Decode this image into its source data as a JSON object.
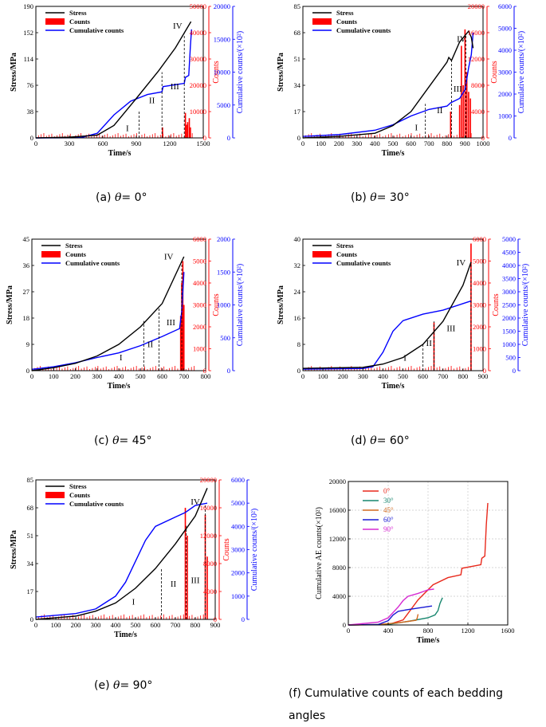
{
  "colors": {
    "stress": "#000000",
    "counts": "#ff0000",
    "cum": "#0000ff",
    "deg0": "#e8291c",
    "deg30": "#17866e",
    "deg45": "#d2691e",
    "deg60": "#1a1ad4",
    "deg90": "#d62ad2",
    "grid": "#c8c8c8"
  },
  "captions": {
    "a": {
      "prefix": "(a)",
      "theta": "θ",
      "suffix": "= 0°"
    },
    "b": {
      "prefix": "(b)",
      "theta": "θ",
      "suffix": "= 30°"
    },
    "c": {
      "prefix": "(c)",
      "theta": "θ",
      "suffix": "= 45°"
    },
    "d": {
      "prefix": "(d)",
      "theta": "θ",
      "suffix": "= 60°"
    },
    "e": {
      "prefix": "(e)",
      "theta": "θ",
      "suffix": "= 90°"
    },
    "f_line1": "(f) Cumulative counts of each bedding",
    "f_line2": "angles"
  },
  "chart_data": [
    {
      "id": "a",
      "type": "line",
      "xlabel": "Time/s",
      "ylabel": "Stress/MPa",
      "y2label": "Counts",
      "y3label": "Cumulative counts/(×10²)",
      "xlim": [
        0,
        1500
      ],
      "xticks": [
        "0",
        "300",
        "600",
        "900",
        "1200",
        "1500"
      ],
      "ylim": [
        0,
        190
      ],
      "yticks": [
        "0",
        "38",
        "76",
        "114",
        "152",
        "190"
      ],
      "y2lim": [
        0,
        50000
      ],
      "y2ticks": [
        "0",
        "10000",
        "20000",
        "30000",
        "40000",
        "50000"
      ],
      "y3lim": [
        0,
        20000
      ],
      "y3ticks": [
        "0",
        "5000",
        "10000",
        "15000",
        "20000"
      ],
      "legend": [
        "Stress",
        "Counts",
        "Cumulative counts"
      ],
      "stress": [
        [
          0,
          0
        ],
        [
          300,
          1
        ],
        [
          550,
          4
        ],
        [
          700,
          18
        ],
        [
          900,
          57
        ],
        [
          1100,
          97
        ],
        [
          1250,
          130
        ],
        [
          1390,
          168
        ]
      ],
      "cum": [
        [
          0,
          0
        ],
        [
          400,
          30
        ],
        [
          550,
          700
        ],
        [
          700,
          3500
        ],
        [
          850,
          5600
        ],
        [
          1000,
          6600
        ],
        [
          1130,
          7000
        ],
        [
          1140,
          7800
        ],
        [
          1330,
          8300
        ],
        [
          1340,
          9200
        ],
        [
          1370,
          9500
        ],
        [
          1385,
          14000
        ],
        [
          1395,
          16500
        ]
      ],
      "counts": [
        [
          1135,
          4000
        ],
        [
          1340,
          9500
        ],
        [
          1350,
          5000
        ],
        [
          1360,
          6000
        ],
        [
          1375,
          7500
        ],
        [
          1385,
          4000
        ]
      ],
      "dashes": [
        [
          925,
          38
        ],
        [
          1130,
          95
        ],
        [
          1330,
          150
        ]
      ],
      "stages": [
        {
          "label": "I",
          "x": 820,
          "y": 10
        },
        {
          "label": "II",
          "x": 1040,
          "y": 50
        },
        {
          "label": "III",
          "x": 1245,
          "y": 70
        },
        {
          "label": "IV",
          "x": 1270,
          "y": 158
        }
      ]
    },
    {
      "id": "b",
      "type": "line",
      "xlabel": "Time/s",
      "ylabel": "Stress/MPa",
      "y2label": "Counts",
      "y3label": "Cumulative counts/(×10²)",
      "xlim": [
        0,
        1000
      ],
      "xticks": [
        "0",
        "100",
        "200",
        "300",
        "400",
        "500",
        "600",
        "700",
        "800",
        "900",
        "1000"
      ],
      "ylim": [
        0,
        85
      ],
      "yticks": [
        "0",
        "17",
        "34",
        "51",
        "68",
        "85"
      ],
      "y2lim": [
        0,
        20000
      ],
      "y2ticks": [
        "0",
        "4000",
        "8000",
        "12000",
        "16000",
        "20000"
      ],
      "y3lim": [
        0,
        6000
      ],
      "y3ticks": [
        "0",
        "1000",
        "2000",
        "3000",
        "4000",
        "5000",
        "6000"
      ],
      "legend": [
        "Stress",
        "Counts",
        "Cumulative counts"
      ],
      "stress": [
        [
          0,
          0
        ],
        [
          200,
          1
        ],
        [
          400,
          3
        ],
        [
          500,
          8
        ],
        [
          600,
          17
        ],
        [
          700,
          33
        ],
        [
          800,
          49
        ],
        [
          810,
          52
        ],
        [
          825,
          50
        ],
        [
          870,
          62
        ],
        [
          920,
          69
        ],
        [
          935,
          65
        ],
        [
          945,
          58
        ]
      ],
      "cum": [
        [
          0,
          70
        ],
        [
          200,
          150
        ],
        [
          400,
          350
        ],
        [
          500,
          600
        ],
        [
          600,
          1000
        ],
        [
          700,
          1300
        ],
        [
          800,
          1450
        ],
        [
          820,
          1600
        ],
        [
          870,
          1800
        ],
        [
          900,
          2200
        ],
        [
          920,
          3200
        ],
        [
          935,
          3800
        ],
        [
          945,
          4800
        ]
      ],
      "counts": [
        [
          820,
          4000
        ],
        [
          870,
          5000
        ],
        [
          880,
          14000
        ],
        [
          890,
          8000
        ],
        [
          900,
          16500
        ],
        [
          910,
          10000
        ],
        [
          920,
          7000
        ],
        [
          930,
          6000
        ]
      ],
      "dashes": [
        [
          680,
          22
        ],
        [
          825,
          50
        ],
        [
          905,
          66
        ]
      ],
      "stages": [
        {
          "label": "I",
          "x": 630,
          "y": 5
        },
        {
          "label": "II",
          "x": 760,
          "y": 16
        },
        {
          "label": "III",
          "x": 860,
          "y": 30
        },
        {
          "label": "IV",
          "x": 880,
          "y": 62
        }
      ]
    },
    {
      "id": "c",
      "type": "line",
      "xlabel": "Time/s",
      "ylabel": "Stress/MPa",
      "y2label": "Counts",
      "y3label": "Cumulative counts/(×10²)",
      "xlim": [
        0,
        800
      ],
      "xticks": [
        "0",
        "100",
        "200",
        "300",
        "400",
        "500",
        "600",
        "700",
        "800"
      ],
      "ylim": [
        0,
        45
      ],
      "yticks": [
        "0",
        "9",
        "18",
        "27",
        "36",
        "45"
      ],
      "y2lim": [
        0,
        6000
      ],
      "y2ticks": [
        "0",
        "1000",
        "2000",
        "3000",
        "4000",
        "5000",
        "6000"
      ],
      "y3lim": [
        0,
        2000
      ],
      "y3ticks": [
        "0",
        "500",
        "1000",
        "1500",
        "2000"
      ],
      "legend": [
        "Stress",
        "Counts",
        "Cumulative counts"
      ],
      "stress": [
        [
          0,
          0
        ],
        [
          100,
          1
        ],
        [
          200,
          2.5
        ],
        [
          300,
          5
        ],
        [
          400,
          9
        ],
        [
          500,
          15
        ],
        [
          600,
          23
        ],
        [
          700,
          39
        ]
      ],
      "cum": [
        [
          0,
          20
        ],
        [
          100,
          60
        ],
        [
          200,
          120
        ],
        [
          300,
          200
        ],
        [
          400,
          270
        ],
        [
          500,
          380
        ],
        [
          600,
          520
        ],
        [
          680,
          640
        ],
        [
          690,
          900
        ],
        [
          700,
          1500
        ]
      ],
      "counts": [
        [
          685,
          2500
        ],
        [
          690,
          4000
        ],
        [
          695,
          5000
        ],
        [
          700,
          3000
        ]
      ],
      "dashes": [
        [
          515,
          17
        ],
        [
          585,
          22
        ],
        [
          690,
          37
        ]
      ],
      "stages": [
        {
          "label": "I",
          "x": 410,
          "y": 3.5
        },
        {
          "label": "II",
          "x": 545,
          "y": 8
        },
        {
          "label": "III",
          "x": 640,
          "y": 15.5
        },
        {
          "label": "IV",
          "x": 630,
          "y": 38
        }
      ]
    },
    {
      "id": "d",
      "type": "line",
      "xlabel": "Time/s",
      "ylabel": "Stress/MPa",
      "y2label": "Counts",
      "y3label": "Cumulative counts/(×10²)",
      "xlim": [
        0,
        900
      ],
      "xticks": [
        "0",
        "100",
        "200",
        "300",
        "400",
        "500",
        "600",
        "700",
        "800",
        "900"
      ],
      "ylim": [
        0,
        40
      ],
      "yticks": [
        "0",
        "8",
        "16",
        "24",
        "32",
        "40"
      ],
      "y2lim": [
        0,
        6000
      ],
      "y2ticks": [
        "0",
        "1000",
        "2000",
        "3000",
        "4000",
        "5000",
        "6000"
      ],
      "y3lim": [
        0,
        5000
      ],
      "y3ticks": [
        "0",
        "500",
        "1000",
        "1500",
        "2000",
        "2500",
        "3000",
        "3500",
        "4000",
        "4500",
        "5000"
      ],
      "legend": [
        "Stress",
        "Counts",
        "Cumulative counts"
      ],
      "stress": [
        [
          0,
          0.7
        ],
        [
          300,
          1
        ],
        [
          400,
          2
        ],
        [
          500,
          4
        ],
        [
          600,
          8
        ],
        [
          700,
          15
        ],
        [
          800,
          26
        ],
        [
          840,
          33
        ]
      ],
      "cum": [
        [
          0,
          60
        ],
        [
          300,
          80
        ],
        [
          350,
          150
        ],
        [
          400,
          700
        ],
        [
          450,
          1500
        ],
        [
          500,
          1900
        ],
        [
          600,
          2150
        ],
        [
          700,
          2300
        ],
        [
          800,
          2550
        ],
        [
          840,
          2650
        ]
      ],
      "counts": [
        [
          655,
          2200
        ],
        [
          840,
          5800
        ]
      ],
      "dashes": [
        [
          600,
          8
        ],
        [
          655,
          15
        ],
        [
          840,
          33
        ]
      ],
      "stages": [
        {
          "label": "I",
          "x": 510,
          "y": 3
        },
        {
          "label": "II",
          "x": 630,
          "y": 7.5
        },
        {
          "label": "III",
          "x": 740,
          "y": 12
        },
        {
          "label": "IV",
          "x": 790,
          "y": 32
        }
      ]
    },
    {
      "id": "e",
      "type": "line",
      "xlabel": "Time/s",
      "ylabel": "Stress/MPa",
      "y2label": "Counts",
      "y3label": "Cumulative counts/(×10²)",
      "xlim": [
        0,
        900
      ],
      "xticks": [
        "0",
        "100",
        "200",
        "300",
        "400",
        "500",
        "600",
        "700",
        "800",
        "900"
      ],
      "ylim": [
        0,
        85
      ],
      "yticks": [
        "0",
        "17",
        "34",
        "51",
        "68",
        "85"
      ],
      "y2lim": [
        0,
        20000
      ],
      "y2ticks": [
        "0",
        "4000",
        "8000",
        "12000",
        "16000",
        "20000"
      ],
      "y3lim": [
        0,
        6000
      ],
      "y3ticks": [
        "0",
        "1000",
        "2000",
        "3000",
        "4000",
        "5000",
        "6000"
      ],
      "legend": [
        "Stress",
        "Counts",
        "Cumulative counts"
      ],
      "stress": [
        [
          0,
          0
        ],
        [
          100,
          1
        ],
        [
          200,
          2
        ],
        [
          300,
          5
        ],
        [
          400,
          10
        ],
        [
          500,
          19
        ],
        [
          600,
          31
        ],
        [
          700,
          46
        ],
        [
          800,
          63
        ],
        [
          860,
          80
        ]
      ],
      "cum": [
        [
          0,
          100
        ],
        [
          200,
          250
        ],
        [
          300,
          450
        ],
        [
          400,
          1000
        ],
        [
          450,
          1600
        ],
        [
          500,
          2500
        ],
        [
          550,
          3400
        ],
        [
          600,
          4000
        ],
        [
          700,
          4400
        ],
        [
          750,
          4600
        ],
        [
          800,
          4900
        ],
        [
          860,
          5000
        ]
      ],
      "counts": [
        [
          750,
          16000
        ],
        [
          760,
          12000
        ],
        [
          850,
          15000
        ],
        [
          860,
          9000
        ]
      ],
      "dashes": [
        [
          630,
          31
        ],
        [
          755,
          57
        ],
        [
          850,
          70
        ]
      ],
      "stages": [
        {
          "label": "I",
          "x": 490,
          "y": 9
        },
        {
          "label": "II",
          "x": 690,
          "y": 20
        },
        {
          "label": "III",
          "x": 800,
          "y": 22
        },
        {
          "label": "IV",
          "x": 800,
          "y": 70
        }
      ]
    },
    {
      "id": "f",
      "type": "line",
      "xlabel": "Time/s",
      "ylabel": "Cumulative AE counts(×10²)",
      "xlim": [
        0,
        1600
      ],
      "xticks": [
        "0",
        "400",
        "800",
        "1200",
        "1600"
      ],
      "ylim": [
        0,
        20000
      ],
      "yticks": [
        "0",
        "4000",
        "8000",
        "12000",
        "16000",
        "20000"
      ],
      "series": [
        {
          "name": "0°",
          "color": "#e8291c",
          "points": [
            [
              0,
              0
            ],
            [
              400,
              50
            ],
            [
              550,
              700
            ],
            [
              700,
              3500
            ],
            [
              850,
              5600
            ],
            [
              1000,
              6600
            ],
            [
              1130,
              7000
            ],
            [
              1140,
              7900
            ],
            [
              1330,
              8400
            ],
            [
              1340,
              9300
            ],
            [
              1370,
              9600
            ],
            [
              1385,
              14000
            ],
            [
              1400,
              17000
            ]
          ]
        },
        {
          "name": "30°",
          "color": "#17866e",
          "points": [
            [
              0,
              0
            ],
            [
              400,
              80
            ],
            [
              600,
              500
            ],
            [
              800,
              1000
            ],
            [
              870,
              1400
            ],
            [
              900,
              2000
            ],
            [
              920,
              3000
            ],
            [
              945,
              3800
            ]
          ]
        },
        {
          "name": "45°",
          "color": "#d2691e",
          "points": [
            [
              0,
              0
            ],
            [
              300,
              60
            ],
            [
              500,
              300
            ],
            [
              600,
              500
            ],
            [
              680,
              650
            ],
            [
              690,
              900
            ],
            [
              700,
              1500
            ]
          ]
        },
        {
          "name": "60°",
          "color": "#1a1ad4",
          "points": [
            [
              0,
              0
            ],
            [
              300,
              60
            ],
            [
              400,
              600
            ],
            [
              450,
              1400
            ],
            [
              500,
              1900
            ],
            [
              600,
              2150
            ],
            [
              700,
              2350
            ],
            [
              840,
              2650
            ]
          ]
        },
        {
          "name": "90°",
          "color": "#d62ad2",
          "points": [
            [
              0,
              0
            ],
            [
              300,
              400
            ],
            [
              400,
              1000
            ],
            [
              500,
              2500
            ],
            [
              550,
              3400
            ],
            [
              600,
              4000
            ],
            [
              700,
              4400
            ],
            [
              800,
              4900
            ],
            [
              860,
              5000
            ]
          ]
        }
      ]
    }
  ]
}
